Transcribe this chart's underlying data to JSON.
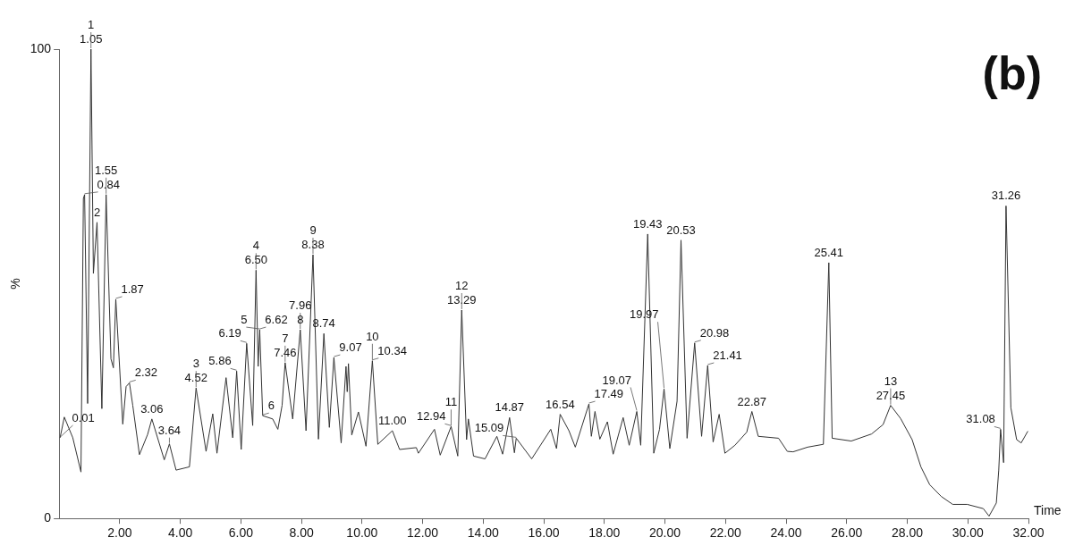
{
  "chart_data": {
    "type": "line",
    "title": "(b)",
    "xlabel": "Time",
    "ylabel": "%",
    "color": "#333333",
    "grid": false,
    "marker": "none",
    "line_style": "solid",
    "xlim": [
      0,
      32
    ],
    "ylim": [
      0,
      100
    ],
    "xticks": [
      {
        "value": 2,
        "label": "2.00"
      },
      {
        "value": 4,
        "label": "4.00"
      },
      {
        "value": 6,
        "label": "6.00"
      },
      {
        "value": 8,
        "label": "8.00"
      },
      {
        "value": 10,
        "label": "10.00"
      },
      {
        "value": 12,
        "label": "12.00"
      },
      {
        "value": 14,
        "label": "14.00"
      },
      {
        "value": 16,
        "label": "16.00"
      },
      {
        "value": 18,
        "label": "18.00"
      },
      {
        "value": 20,
        "label": "20.00"
      },
      {
        "value": 22,
        "label": "22.00"
      },
      {
        "value": 24,
        "label": "24.00"
      },
      {
        "value": 26,
        "label": "26.00"
      },
      {
        "value": 28,
        "label": "28.00"
      },
      {
        "value": 30,
        "label": "30.00"
      },
      {
        "value": 32,
        "label": "32.00"
      }
    ],
    "yticks": [
      0,
      100
    ],
    "x": [
      0.03,
      0.17,
      0.45,
      0.72,
      0.8,
      0.84,
      0.94,
      1.05,
      1.13,
      1.25,
      1.41,
      1.55,
      1.71,
      1.79,
      1.87,
      2.1,
      2.21,
      2.32,
      2.43,
      2.65,
      2.92,
      3.06,
      3.47,
      3.64,
      3.86,
      4.3,
      4.52,
      4.85,
      5.07,
      5.21,
      5.51,
      5.73,
      5.86,
      6.01,
      6.19,
      6.39,
      6.5,
      6.57,
      6.62,
      6.72,
      7.05,
      7.22,
      7.36,
      7.46,
      7.71,
      7.96,
      8.15,
      8.38,
      8.56,
      8.74,
      8.92,
      9.07,
      9.31,
      9.47,
      9.51,
      9.55,
      9.66,
      9.88,
      10.13,
      10.34,
      10.52,
      11.0,
      11.24,
      11.79,
      11.86,
      12.39,
      12.58,
      12.94,
      13.16,
      13.29,
      13.45,
      13.51,
      13.68,
      14.06,
      14.45,
      14.64,
      14.87,
      15.03,
      15.09,
      15.6,
      16.23,
      16.42,
      16.54,
      16.83,
      17.04,
      17.49,
      17.57,
      17.69,
      17.85,
      18.1,
      18.29,
      18.62,
      18.82,
      19.07,
      19.2,
      19.43,
      19.63,
      19.82,
      19.97,
      20.16,
      20.4,
      20.53,
      20.73,
      20.98,
      21.21,
      21.41,
      21.59,
      21.79,
      21.98,
      22.31,
      22.7,
      22.87,
      23.08,
      23.75,
      24.04,
      24.23,
      24.71,
      25.23,
      25.41,
      25.52,
      26.15,
      26.82,
      27.2,
      27.45,
      27.78,
      28.16,
      28.45,
      28.74,
      29.12,
      29.5,
      29.98,
      30.51,
      30.7,
      30.94,
      31.02,
      31.08,
      31.18,
      31.26,
      31.42,
      31.61,
      31.76,
      31.98
    ],
    "values": [
      17.2,
      21.6,
      17.2,
      9.9,
      68.2,
      69,
      24.5,
      100,
      52.2,
      63.1,
      23.4,
      69,
      34,
      32.1,
      46.7,
      20.1,
      28.1,
      28.9,
      24.1,
      13.6,
      17.9,
      21.2,
      12.5,
      15.9,
      10.3,
      11,
      27.8,
      14.3,
      22.3,
      13.9,
      30,
      17.2,
      31.4,
      14.7,
      37.3,
      19.8,
      52.9,
      32.4,
      40.2,
      21.9,
      21.2,
      19.0,
      24.1,
      33.2,
      21.2,
      40.2,
      18.7,
      56.2,
      16.9,
      39.4,
      19.4,
      34.3,
      16.1,
      32.4,
      27,
      33,
      17.8,
      22.7,
      15.4,
      33.6,
      15.8,
      18.7,
      14.7,
      15.1,
      13.9,
      19,
      13.5,
      19.6,
      13.3,
      44.4,
      16.8,
      21.2,
      13.3,
      12.7,
      17.5,
      13.7,
      21.5,
      14,
      17.1,
      12.7,
      19,
      14.9,
      22.2,
      18.7,
      15.2,
      24.4,
      17.5,
      22.8,
      16.9,
      20.6,
      13.7,
      21.5,
      15.6,
      22.8,
      15.6,
      60.6,
      13.9,
      19,
      27.6,
      14.9,
      25,
      59.3,
      17.1,
      37.4,
      17.5,
      32.6,
      16.3,
      22.2,
      13.9,
      15.6,
      18.4,
      22.8,
      17.5,
      17.1,
      14.3,
      14.2,
      15.2,
      15.8,
      54.5,
      17.1,
      16.5,
      18,
      20,
      24.1,
      21.3,
      16.8,
      11,
      7.2,
      4.7,
      3.0,
      3.0,
      2.1,
      0.5,
      3.3,
      10.3,
      19,
      11.9,
      66.6,
      23.6,
      16.8,
      16.1,
      18.6
    ],
    "annotations": [
      {
        "text": "0.01",
        "x": 0.01,
        "y": 17
      },
      {
        "text": "0.84",
        "x": 0.84,
        "y": 69
      },
      {
        "text": "1.05",
        "x": 1.05,
        "y": 100
      },
      {
        "text": "1.55",
        "x": 1.55,
        "y": 69
      },
      {
        "text": "1.87",
        "x": 1.87,
        "y": 46.7
      },
      {
        "text": "2.32",
        "x": 2.32,
        "y": 28.9
      },
      {
        "text": "3.06",
        "x": 3.06,
        "y": 21.2
      },
      {
        "text": "3.64",
        "x": 3.64,
        "y": 15.9
      },
      {
        "text": "4.52",
        "x": 4.52,
        "y": 27.8
      },
      {
        "text": "5.86",
        "x": 5.86,
        "y": 31.4
      },
      {
        "text": "6.19",
        "x": 6.19,
        "y": 37.3
      },
      {
        "text": "6.50",
        "x": 6.5,
        "y": 52.9
      },
      {
        "text": "6.62",
        "x": 6.62,
        "y": 40.2
      },
      {
        "text": "7.46",
        "x": 7.46,
        "y": 33.2
      },
      {
        "text": "7.96",
        "x": 7.96,
        "y": 40.2
      },
      {
        "text": "8.38",
        "x": 8.38,
        "y": 56.2
      },
      {
        "text": "8.74",
        "x": 8.74,
        "y": 39.4
      },
      {
        "text": "9.07",
        "x": 9.07,
        "y": 34.3
      },
      {
        "text": "10.34",
        "x": 10.34,
        "y": 33.6
      },
      {
        "text": "11.00",
        "x": 11.0,
        "y": 18.7
      },
      {
        "text": "12.94",
        "x": 12.94,
        "y": 19.6
      },
      {
        "text": "13.29",
        "x": 13.29,
        "y": 44.4
      },
      {
        "text": "14.87",
        "x": 14.87,
        "y": 21.5
      },
      {
        "text": "15.09",
        "x": 15.09,
        "y": 17.1
      },
      {
        "text": "16.54",
        "x": 16.54,
        "y": 22.2
      },
      {
        "text": "17.49",
        "x": 17.49,
        "y": 24.4
      },
      {
        "text": "19.07",
        "x": 19.07,
        "y": 22.8
      },
      {
        "text": "19.43",
        "x": 19.43,
        "y": 60.6
      },
      {
        "text": "19.97",
        "x": 19.97,
        "y": 27.6
      },
      {
        "text": "20.53",
        "x": 20.53,
        "y": 59.3
      },
      {
        "text": "20.98",
        "x": 20.98,
        "y": 37.4
      },
      {
        "text": "21.41",
        "x": 21.41,
        "y": 32.6
      },
      {
        "text": "22.87",
        "x": 22.87,
        "y": 22.8
      },
      {
        "text": "25.41",
        "x": 25.41,
        "y": 54.5
      },
      {
        "text": "27.45",
        "x": 27.45,
        "y": 24.1
      },
      {
        "text": "31.08",
        "x": 31.08,
        "y": 19
      },
      {
        "text": "31.26",
        "x": 31.26,
        "y": 66.6
      },
      {
        "text": "1",
        "x": 1.05,
        "y": 100
      },
      {
        "text": "2",
        "x": 1.25,
        "y": 63.1
      },
      {
        "text": "3",
        "x": 4.52,
        "y": 27.8
      },
      {
        "text": "4",
        "x": 6.5,
        "y": 52.9
      },
      {
        "text": "5",
        "x": 6.62,
        "y": 40.2
      },
      {
        "text": "6",
        "x": 6.72,
        "y": 21.9
      },
      {
        "text": "7",
        "x": 7.46,
        "y": 33.2
      },
      {
        "text": "8",
        "x": 7.96,
        "y": 40.2
      },
      {
        "text": "9",
        "x": 8.38,
        "y": 56.2
      },
      {
        "text": "10",
        "x": 10.34,
        "y": 33.6
      },
      {
        "text": "11",
        "x": 12.94,
        "y": 19.6
      },
      {
        "text": "12",
        "x": 13.29,
        "y": 44.4
      },
      {
        "text": "13",
        "x": 27.45,
        "y": 24.1
      }
    ]
  }
}
